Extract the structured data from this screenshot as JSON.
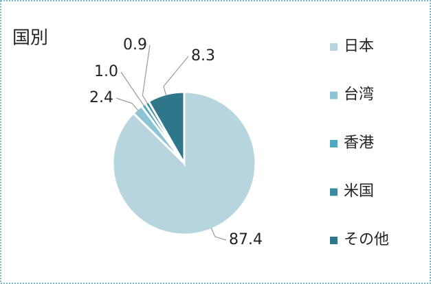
{
  "chart_data": {
    "type": "pie",
    "title": "国別",
    "categories": [
      "日本",
      "台湾",
      "香港",
      "米国",
      "その他"
    ],
    "values": [
      87.4,
      2.4,
      1.0,
      0.9,
      8.3
    ],
    "value_labels": [
      "87.4",
      "2.4",
      "1.0",
      "0.9",
      "8.3"
    ],
    "colors": [
      "#b7d5df",
      "#8cc4d3",
      "#4ea8bf",
      "#3b8ca1",
      "#2e778b"
    ],
    "legend": "right"
  }
}
